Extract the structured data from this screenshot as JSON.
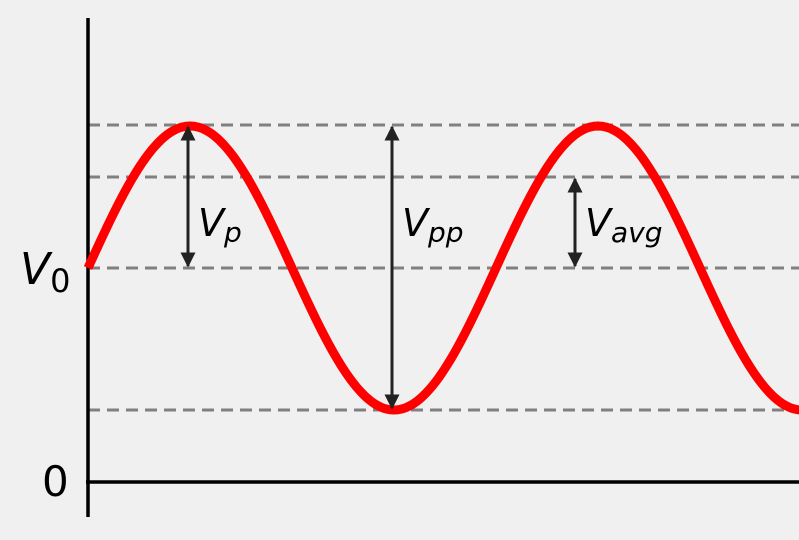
{
  "labels": {
    "v0_main": "V",
    "v0_sub": "0",
    "zero": "0",
    "vp_main": "V",
    "vp_sub": "p",
    "vpp_main": "V",
    "vpp_sub": "pp",
    "vavg_main": "V",
    "vavg_sub": "avg"
  },
  "colors": {
    "waveform": "#ff0000",
    "axes": "#000000",
    "dashed_lines": "#808080",
    "arrows": "#222222",
    "background": "#f0f0f0"
  }
}
